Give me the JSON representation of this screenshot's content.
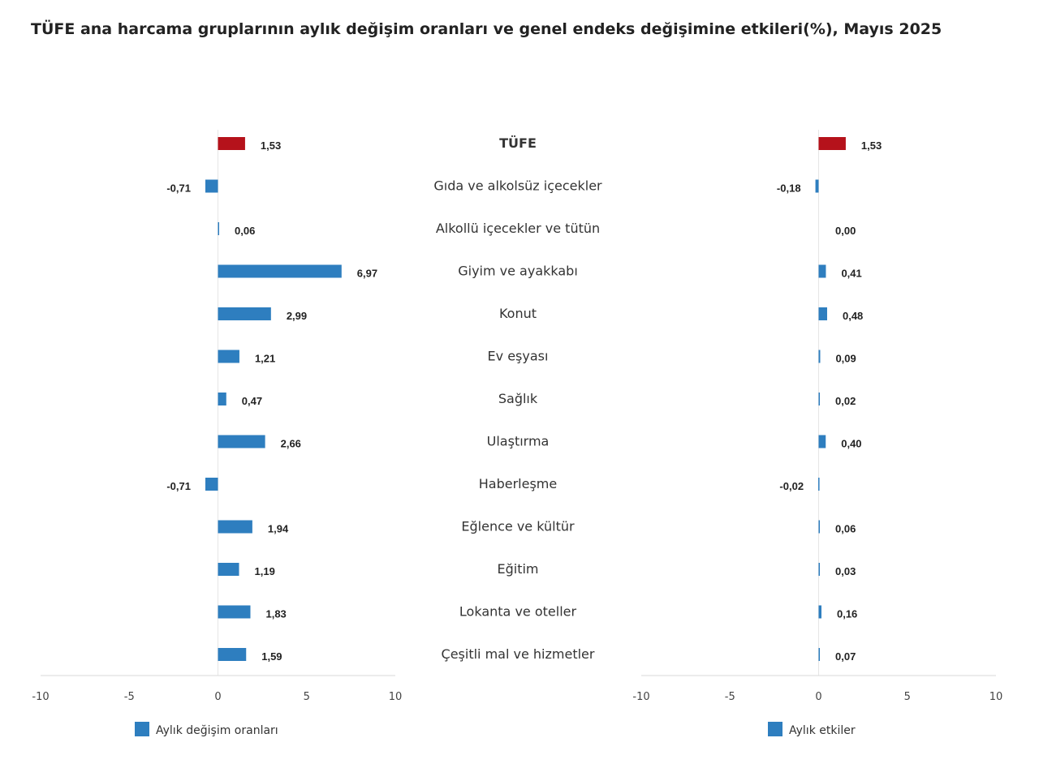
{
  "title": "TÜFE ana harcama gruplarının aylık değişim oranları ve genel endeks değişimine etkileri(%), Mayıs 2025",
  "colors": {
    "highlight": "#b5121b",
    "bar": "#2e7ebf"
  },
  "chart_data": [
    {
      "type": "bar",
      "orientation": "horizontal",
      "categories": [
        "TÜFE",
        "Gıda ve alkolsüz içecekler",
        "Alkollü içecekler ve tütün",
        "Giyim ve ayakkabı",
        "Konut",
        "Ev eşyası",
        "Sağlık",
        "Ulaştırma",
        "Haberleşme",
        "Eğlence ve kültür",
        "Eğitim",
        "Lokanta ve oteller",
        "Çeşitli mal ve hizmetler"
      ],
      "series": [
        {
          "name": "Aylık değişim oranları",
          "values": [
            1.53,
            -0.71,
            0.06,
            6.97,
            2.99,
            1.21,
            0.47,
            2.66,
            -0.71,
            1.94,
            1.19,
            1.83,
            1.59
          ]
        }
      ],
      "labels": [
        "1,53",
        "-0,71",
        "0,06",
        "6,97",
        "2,99",
        "1,21",
        "0,47",
        "2,66",
        "-0,71",
        "1,94",
        "1,19",
        "1,83",
        "1,59"
      ],
      "xlim": [
        -10,
        10
      ],
      "ticks": [
        "-10",
        "-5",
        "0",
        "5",
        "10"
      ],
      "legend": "bottom"
    },
    {
      "type": "bar",
      "orientation": "horizontal",
      "categories": [
        "TÜFE",
        "Gıda ve alkolsüz içecekler",
        "Alkollü içecekler ve tütün",
        "Giyim ve ayakkabı",
        "Konut",
        "Ev eşyası",
        "Sağlık",
        "Ulaştırma",
        "Haberleşme",
        "Eğlence ve kültür",
        "Eğitim",
        "Lokanta ve oteller",
        "Çeşitli mal ve hizmetler"
      ],
      "series": [
        {
          "name": "Aylık etkiler",
          "values": [
            1.53,
            -0.18,
            0.0,
            0.41,
            0.48,
            0.09,
            0.02,
            0.4,
            -0.02,
            0.06,
            0.03,
            0.16,
            0.07
          ]
        }
      ],
      "labels": [
        "1,53",
        "-0,18",
        "0,00",
        "0,41",
        "0,48",
        "0,09",
        "0,02",
        "0,40",
        "-0,02",
        "0,06",
        "0,03",
        "0,16",
        "0,07"
      ],
      "xlim": [
        -10,
        10
      ],
      "ticks": [
        "-10",
        "-5",
        "0",
        "5",
        "10"
      ],
      "legend": "bottom"
    }
  ]
}
